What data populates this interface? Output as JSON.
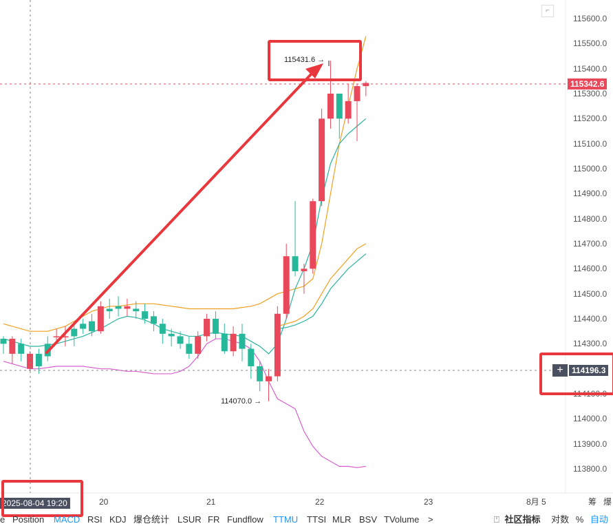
{
  "chart_data": {
    "type": "candlestick",
    "y_ticks": [
      "115600.0",
      "115500.0",
      "115400.0",
      "115300.0",
      "115200.0",
      "115100.0",
      "115000.0",
      "114900.0",
      "114800.0",
      "114700.0",
      "114600.0",
      "114500.0",
      "114400.0",
      "114300.0",
      "114100.0",
      "114000.0",
      "113900.0",
      "113800.0"
    ],
    "x_ticks": [
      "20",
      "21",
      "22",
      "23",
      "8月 5",
      "筹",
      "爆"
    ],
    "ylim": [
      113750,
      115650
    ],
    "candles": [
      [
        114320,
        114300,
        114330,
        114260
      ],
      [
        114260,
        114320,
        114330,
        114220
      ],
      [
        114300,
        114260,
        114320,
        114230
      ],
      [
        114200,
        114260,
        114270,
        114190
      ],
      [
        114260,
        114210,
        114280,
        114180
      ],
      [
        114300,
        114250,
        114330,
        114230
      ],
      [
        114330,
        114330,
        114360,
        114300
      ],
      [
        114330,
        114330,
        114370,
        114290
      ],
      [
        114360,
        114330,
        114380,
        114290
      ],
      [
        114380,
        114360,
        114400,
        114340
      ],
      [
        114390,
        114350,
        114420,
        114330
      ],
      [
        114350,
        114450,
        114470,
        114340
      ],
      [
        114440,
        114430,
        114480,
        114400
      ],
      [
        114450,
        114440,
        114490,
        114410
      ],
      [
        114440,
        114450,
        114480,
        114410
      ],
      [
        114440,
        114430,
        114470,
        114400
      ],
      [
        114430,
        114400,
        114460,
        114380
      ],
      [
        114410,
        114380,
        114430,
        114350
      ],
      [
        114380,
        114340,
        114400,
        114300
      ],
      [
        114340,
        114330,
        114360,
        114290
      ],
      [
        114330,
        114300,
        114350,
        114280
      ],
      [
        114300,
        114260,
        114330,
        114240
      ],
      [
        114260,
        114330,
        114350,
        114240
      ],
      [
        114330,
        114400,
        114420,
        114310
      ],
      [
        114400,
        114340,
        114430,
        114320
      ],
      [
        114340,
        114270,
        114380,
        114260
      ],
      [
        114270,
        114340,
        114370,
        114250
      ],
      [
        114340,
        114280,
        114380,
        114230
      ],
      [
        114280,
        114210,
        114300,
        114160
      ],
      [
        114210,
        114150,
        114230,
        114110
      ],
      [
        114150,
        114170,
        114200,
        114070
      ],
      [
        114170,
        114420,
        114450,
        114150
      ],
      [
        114420,
        114650,
        114700,
        114400
      ],
      [
        114650,
        114590,
        114870,
        114570
      ],
      [
        114590,
        114600,
        114620,
        114500
      ],
      [
        114600,
        114870,
        114880,
        114580
      ],
      [
        114870,
        115200,
        115240,
        114850
      ],
      [
        115200,
        115300,
        115431.6,
        115160
      ],
      [
        115300,
        115200,
        115300,
        115120
      ],
      [
        115200,
        115270,
        115340,
        115180
      ],
      [
        115270,
        115330,
        115340,
        115110
      ],
      [
        115330,
        115342.6,
        115350,
        115290
      ]
    ],
    "annotations": {
      "high": "115431.6",
      "low": "114070.0"
    },
    "series": [
      {
        "color": "#f0a020",
        "values": [
          114380,
          114370,
          114360,
          114350,
          114350,
          114350,
          114360,
          114370,
          114390,
          114410,
          114430,
          114440,
          114450,
          114450,
          114455,
          114460,
          114460,
          114460,
          114455,
          114450,
          114445,
          114440,
          114440,
          114440,
          114440,
          114440,
          114440,
          114445,
          114450,
          114460,
          114480,
          114500,
          114510,
          114520,
          114530,
          114560,
          114700,
          114900,
          115100,
          115250,
          115400,
          115530
        ]
      },
      {
        "color": "#2ab3a0",
        "values": [
          114320,
          114310,
          114300,
          114290,
          114290,
          114295,
          114300,
          114310,
          114320,
          114330,
          114345,
          114360,
          114380,
          114400,
          114410,
          114405,
          114395,
          114380,
          114360,
          114350,
          114340,
          114330,
          114330,
          114340,
          114345,
          114340,
          114335,
          114330,
          114310,
          114290,
          114260,
          114300,
          114400,
          114520,
          114600,
          114700,
          114880,
          115020,
          115100,
          115140,
          115170,
          115200
        ]
      },
      {
        "color": "#d85fd0",
        "values": [
          114230,
          114220,
          114210,
          114200,
          114200,
          114205,
          114210,
          114210,
          114210,
          114210,
          114205,
          114200,
          114200,
          114195,
          114190,
          114190,
          114185,
          114180,
          114180,
          114180,
          114190,
          114210,
          114250,
          114300,
          114320,
          114320,
          114310,
          114300,
          114280,
          114230,
          114150,
          114080,
          114060,
          114040,
          113950,
          113890,
          113850,
          113830,
          113810,
          113810,
          113805,
          113810
        ]
      },
      {
        "color": "#f0a020",
        "values": [
          null,
          null,
          null,
          null,
          null,
          null,
          null,
          null,
          null,
          null,
          null,
          null,
          null,
          null,
          null,
          null,
          null,
          null,
          null,
          null,
          null,
          null,
          null,
          null,
          null,
          null,
          null,
          null,
          null,
          null,
          null,
          114370,
          114380,
          114390,
          114410,
          114440,
          114500,
          114560,
          114600,
          114640,
          114680,
          114700
        ]
      },
      {
        "color": "#2ab3a0",
        "values": [
          null,
          null,
          null,
          null,
          null,
          null,
          null,
          null,
          null,
          null,
          null,
          null,
          null,
          null,
          null,
          null,
          null,
          null,
          null,
          null,
          null,
          null,
          null,
          null,
          null,
          null,
          null,
          null,
          null,
          null,
          null,
          114360,
          114365,
          114375,
          114390,
          114410,
          114460,
          114520,
          114560,
          114600,
          114630,
          114660
        ]
      }
    ]
  },
  "price_tags": {
    "current": "115342.6",
    "crosshair": "114196.3",
    "crosshair_btn": "+"
  },
  "date_label": "2025-08-04 19:20",
  "indicators": [
    "e",
    "Position",
    "MACD",
    "RSI",
    "KDJ",
    "爆仓统计",
    "LSUR",
    "FR",
    "Fundflow",
    "TTMU",
    "TTSI",
    "MLR",
    "BSV",
    "TVolume",
    ">"
  ],
  "active_indicators": [
    "MACD",
    "TTMU"
  ],
  "right_tools": {
    "community_icon": "⍞",
    "community": "社区指标",
    "log": "对数",
    "percent": "%",
    "auto": "自动"
  },
  "colors": {
    "up": "#e8485a",
    "down": "#26b89a",
    "accent": "#e8383d",
    "tag_bg": "#4a5060"
  }
}
